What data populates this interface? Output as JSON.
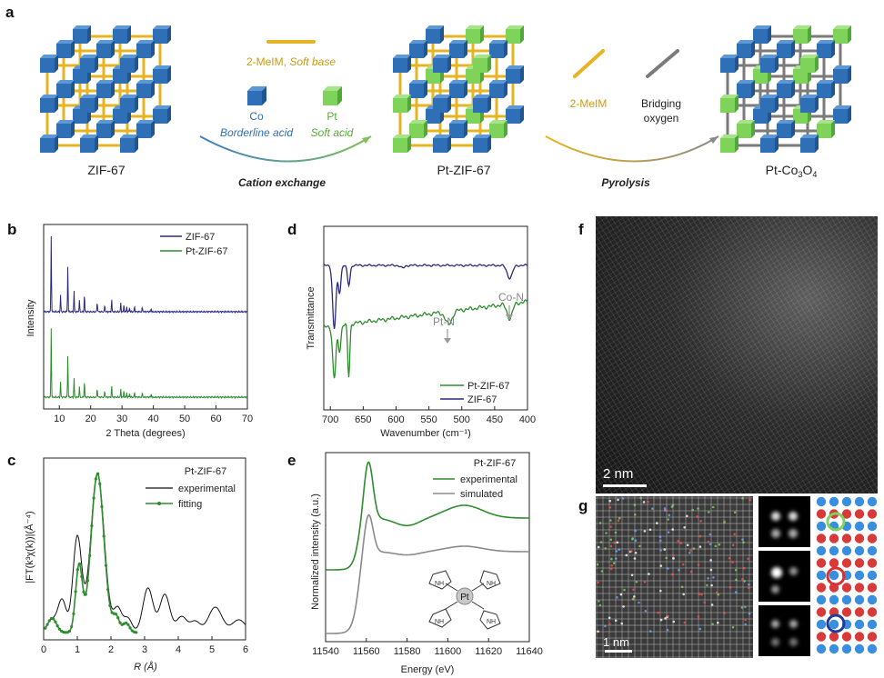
{
  "panel_labels": {
    "a": "a",
    "b": "b",
    "c": "c",
    "d": "d",
    "e": "e",
    "f": "f",
    "g": "g"
  },
  "schematic": {
    "zif67": "ZIF-67",
    "ptzif67": "Pt-ZIF-67",
    "ptco3o4_main": "Pt-Co",
    "ptco3o4_sub1": "3",
    "ptco3o4_o": "O",
    "ptco3o4_sub2": "4",
    "ligand1": "2-MeIM, ",
    "ligand1_soft": "Soft base",
    "co_label": "Co",
    "co_sub": "Borderline acid",
    "pt_label": "Pt",
    "pt_sub": "Soft acid",
    "cation_exchange": "Cation exchange",
    "ligand2": "2-MeIM",
    "bridging1": "Bridging",
    "bridging2": "oxygen",
    "pyrolysis": "Pyrolysis"
  },
  "chart_b": {
    "type": "line",
    "xlabel": "2 Theta (degrees)",
    "ylabel": "Intensity",
    "xticks": [
      "10",
      "20",
      "30",
      "40",
      "50",
      "60",
      "70"
    ],
    "xlim": [
      5,
      70
    ],
    "legend": [
      {
        "name": "ZIF-67",
        "color": "#2b2a7a"
      },
      {
        "name": "Pt-ZIF-67",
        "color": "#2e8b2e"
      }
    ],
    "peaks_2theta": [
      7.4,
      10.4,
      12.7,
      14.7,
      16.4,
      18.0,
      22.1,
      24.5,
      26.7,
      29.6,
      30.6,
      31.5,
      32.4,
      34.0,
      36.5,
      39.3
    ]
  },
  "chart_c": {
    "type": "line",
    "title": "Pt-ZIF-67",
    "xlabel": "R (Å)",
    "ylabel": "|FT(k³χ(k))|(Å⁻⁴)",
    "xticks": [
      "0",
      "1",
      "2",
      "3",
      "4",
      "5",
      "6"
    ],
    "xlim": [
      0,
      6
    ],
    "legend": [
      {
        "name": "experimental",
        "color": "#111111"
      },
      {
        "name": "fitting",
        "color": "#2e8b2e"
      }
    ]
  },
  "chart_d": {
    "type": "line",
    "xlabel": "Wavenumber (cm⁻¹)",
    "ylabel": "Transmittance",
    "xticks": [
      "700",
      "650",
      "600",
      "550",
      "500",
      "450",
      "400"
    ],
    "xlim": [
      710,
      400
    ],
    "annotations": [
      "Pt-N",
      "Co-N"
    ],
    "legend": [
      {
        "name": "Pt-ZIF-67",
        "color": "#2e8b2e"
      },
      {
        "name": "ZIF-67",
        "color": "#2b2a7a"
      }
    ]
  },
  "chart_e": {
    "type": "line",
    "title": "Pt-ZIF-67",
    "xlabel": "Energy (eV)",
    "ylabel": "Normalized intensity (a.u.)",
    "xticks": [
      "11540",
      "11560",
      "11580",
      "11600",
      "11620",
      "11640"
    ],
    "xlim": [
      11540,
      11640
    ],
    "legend": [
      {
        "name": "experimental",
        "color": "#2e8b2e"
      },
      {
        "name": "simulated",
        "color": "#8a8a8a"
      }
    ],
    "inset_atom": "Pt",
    "inset_nh": "NH"
  },
  "image_f": {
    "scale": "2 nm"
  },
  "image_g": {
    "scale": "1 nm"
  },
  "colors": {
    "co": "#2f6fb5",
    "pt": "#7fd25a",
    "yellow": "#e6b422",
    "gray": "#7a7a7a",
    "navy": "#2b2a7a",
    "green": "#2e8b2e"
  }
}
